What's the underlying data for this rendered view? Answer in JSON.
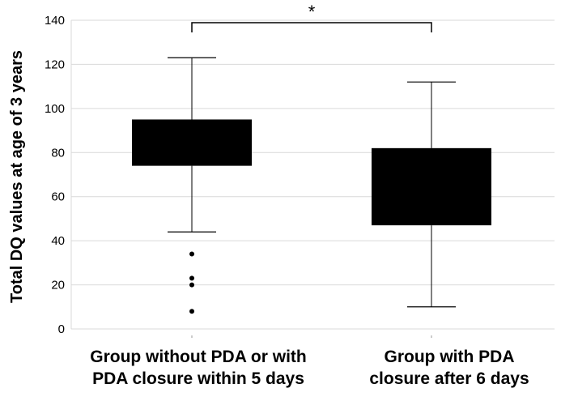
{
  "chart_data": {
    "type": "box",
    "ylabel": "Total DQ values at age of 3 years",
    "ylim": [
      0,
      140
    ],
    "yticks": [
      0,
      20,
      40,
      60,
      80,
      100,
      120,
      140
    ],
    "grid": "horizontal",
    "legend": "none",
    "groups": [
      {
        "label_lines": [
          "Group without PDA or with",
          "PDA closure within 5 days"
        ],
        "whisker_low": 44,
        "q1": 74,
        "q3": 95,
        "whisker_high": 123,
        "outliers": [
          34,
          23,
          20,
          8
        ]
      },
      {
        "label_lines": [
          "Group with PDA",
          "closure after 6 days"
        ],
        "whisker_low": 10,
        "q1": 47,
        "q3": 82,
        "whisker_high": 112,
        "outliers": []
      }
    ],
    "significance": {
      "between": [
        0,
        1
      ],
      "label": "*"
    },
    "colors": {
      "box": "#000000",
      "grid": "#d9d9d9"
    }
  }
}
